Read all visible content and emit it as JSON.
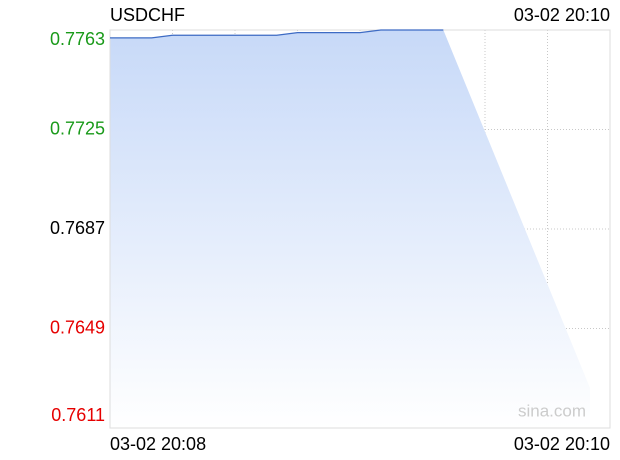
{
  "chart_data": {
    "type": "area",
    "title": "USDCHF",
    "time": "03-02 20:10",
    "watermark": "sina.com",
    "categories": [
      "03-02 20:08",
      null,
      null,
      null,
      null,
      null,
      null,
      null,
      null,
      null,
      null,
      null,
      null,
      null,
      null,
      null,
      null,
      null,
      null,
      null,
      null,
      null,
      null,
      null,
      "03-02 20:10"
    ],
    "values": [
      0.776,
      0.776,
      0.776,
      0.7761,
      0.7761,
      0.7761,
      0.7761,
      0.7761,
      0.7761,
      0.7762,
      0.7762,
      0.7762,
      0.7762,
      0.7763,
      0.7763,
      0.7763,
      0.7763,
      null,
      null,
      null,
      null,
      null,
      null,
      null,
      null
    ],
    "color": "#3d6bc4",
    "ylim": [
      0.7611,
      0.7763
    ],
    "yticks": [
      0.7763,
      0.7725,
      0.7687,
      0.7649,
      0.7611
    ],
    "ytick_colors": [
      "#1a9a1a",
      "#1a9a1a",
      "#000000",
      "#e60000",
      "#e60000"
    ],
    "grid": true
  }
}
